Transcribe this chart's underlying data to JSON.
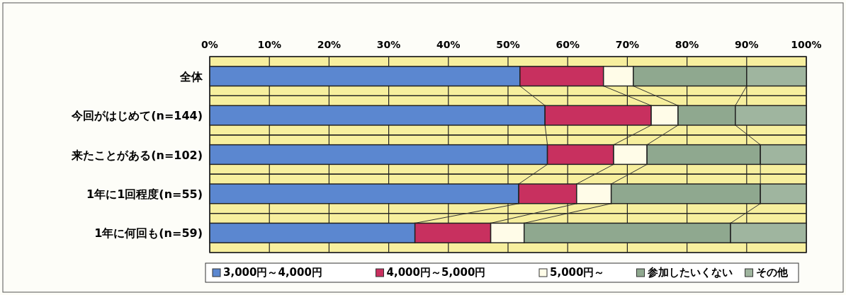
{
  "chart_data": {
    "type": "bar",
    "orientation": "horizontal",
    "stacked": true,
    "categories": [
      "全体",
      "今回がはじめて(n=144)",
      "来たことがある(n=102)",
      "1年に1回程度(n=55)",
      "1年に何回も(n=59)"
    ],
    "series": [
      {
        "name": "3,000円～4,000円",
        "color": "#5b87d0",
        "values": [
          52,
          56.2,
          56.6,
          51.8,
          34.4
        ]
      },
      {
        "name": "4,000円～5,000円",
        "color": "#c8305f",
        "values": [
          14,
          17.8,
          11.1,
          9.7,
          12.7
        ]
      },
      {
        "name": "5,000円～",
        "color": "#fffce8",
        "values": [
          5,
          4.5,
          5.6,
          5.8,
          5.6
        ]
      },
      {
        "name": "参加したいくない",
        "color": "#8fa88f",
        "values": [
          19,
          9.6,
          19,
          25,
          34.6
        ]
      },
      {
        "name": "その他",
        "color": "#9fb59f",
        "values": [
          10,
          11.9,
          7.7,
          7.7,
          12.7
        ]
      }
    ],
    "xlim": [
      0,
      100
    ],
    "xticks": [
      {
        "value": 0,
        "label": "0%"
      },
      {
        "value": 10,
        "label": "10%"
      },
      {
        "value": 20,
        "label": "20%"
      },
      {
        "value": 30,
        "label": "30%"
      },
      {
        "value": 40,
        "label": "40%"
      },
      {
        "value": 50,
        "label": "50%"
      },
      {
        "value": 60,
        "label": "60%"
      },
      {
        "value": 70,
        "label": "70%"
      },
      {
        "value": 80,
        "label": "80%"
      },
      {
        "value": 90,
        "label": "90%"
      },
      {
        "value": 100,
        "label": "100%"
      }
    ],
    "grid": "x",
    "legend": "bottom"
  }
}
